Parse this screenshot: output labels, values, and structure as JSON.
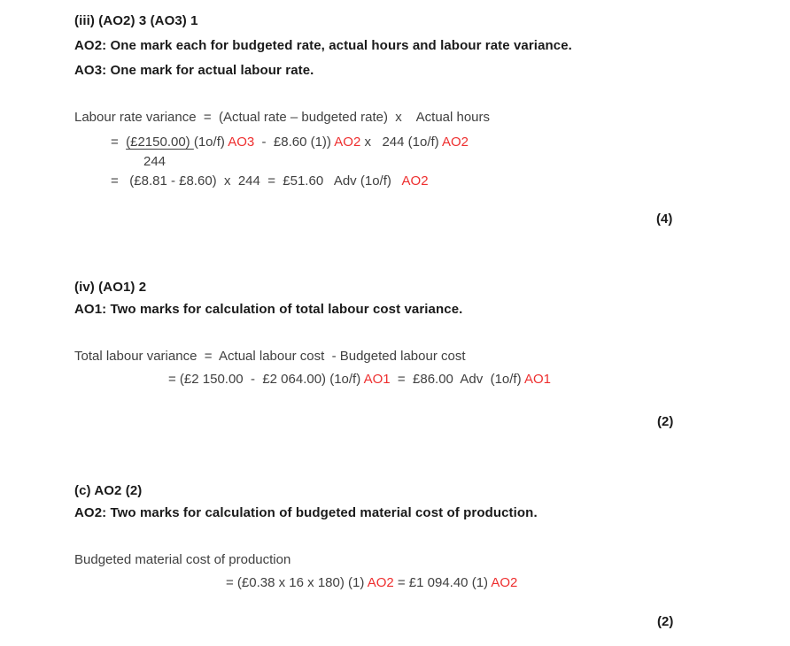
{
  "colors": {
    "red_marker": "#ee2f2f",
    "body_text": "#404040",
    "heading_text": "#1a1a1a",
    "background": "#ffffff"
  },
  "section_iii": {
    "heading": "(iii) (AO2) 3 (AO3) 1",
    "note_ao2": "AO2: One mark each for budgeted rate, actual hours and labour rate variance.",
    "note_ao3": "AO3: One mark for actual labour rate.",
    "formula_intro": "Labour rate variance  =  (Actual rate – budgeted rate)  x    Actual hours",
    "formula_line2": [
      {
        "t": "=  "
      },
      {
        "t": "(£2150.00) ",
        "u": true
      },
      {
        "t": "(1o/f) "
      },
      {
        "t": "AO3",
        "c": "red"
      },
      {
        "t": "  -  £8.60 (1)) "
      },
      {
        "t": "AO2",
        "c": "red"
      },
      {
        "t": " x   244 (1o/f) "
      },
      {
        "t": "AO2",
        "c": "red"
      }
    ],
    "denominator": "244",
    "formula_line3": [
      {
        "t": "=   (£8.81 - £8.60)  x  244  =  £51.60   Adv (1o/f)   "
      },
      {
        "t": "AO2",
        "c": "red"
      }
    ],
    "marks": "(4)"
  },
  "section_iv": {
    "heading": "(iv) (AO1) 2",
    "note_ao1": "AO1: Two marks for calculation of total labour cost variance.",
    "formula_intro": "Total labour variance  =  Actual labour cost  - Budgeted labour cost",
    "formula_line2": [
      {
        "t": "= (£2 150.00  -  £2 064.00) (1o/f) "
      },
      {
        "t": "AO1",
        "c": "red"
      },
      {
        "t": "  =  £86.00  Adv  (1o/f) "
      },
      {
        "t": "AO1",
        "c": "red"
      }
    ],
    "marks": "(2)"
  },
  "section_c": {
    "heading": "(c) AO2 (2)",
    "note_ao2": "AO2: Two marks for calculation of budgeted material cost of production.",
    "formula_intro": "Budgeted material cost of production",
    "formula_line2": [
      {
        "t": "= (£0.38 x 16 x 180) (1) "
      },
      {
        "t": "AO2",
        "c": "red"
      },
      {
        "t": " = £1 094.40 (1) "
      },
      {
        "t": "AO2",
        "c": "red"
      }
    ],
    "marks": "(2)"
  }
}
